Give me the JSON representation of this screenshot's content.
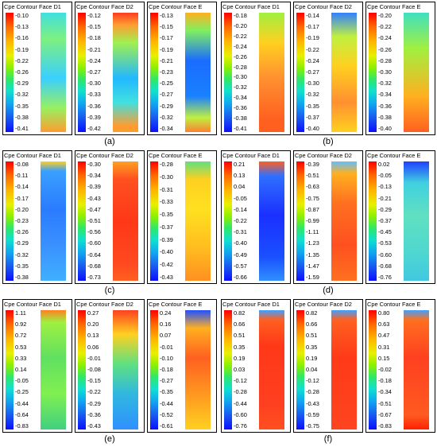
{
  "groups": [
    {
      "label": "(a)",
      "panels": [
        {
          "title": "Cpe Contour Face D1",
          "ticks": [
            "-0.10",
            "-0.13",
            "-0.16",
            "-0.19",
            "-0.22",
            "-0.26",
            "-0.29",
            "-0.32",
            "-0.35",
            "-0.38",
            "-0.41"
          ],
          "style": "a1"
        },
        {
          "title": "Cpe Contour Face D2",
          "ticks": [
            "-0.12",
            "-0.15",
            "-0.18",
            "-0.21",
            "-0.24",
            "-0.27",
            "-0.30",
            "-0.33",
            "-0.36",
            "-0.39",
            "-0.42"
          ],
          "style": "a2"
        },
        {
          "title": "Cpe Contour Face E",
          "ticks": [
            "-0.13",
            "-0.15",
            "-0.17",
            "-0.19",
            "-0.21",
            "-0.23",
            "-0.25",
            "-0.27",
            "-0.29",
            "-0.32",
            "-0.34"
          ],
          "style": "a3"
        }
      ]
    },
    {
      "label": "(b)",
      "panels": [
        {
          "title": "Cpe Contour Face D1",
          "ticks": [
            "-0.18",
            "-0.20",
            "-0.22",
            "-0.24",
            "-0.26",
            "-0.28",
            "-0.30",
            "-0.32",
            "-0.34",
            "-0.36",
            "-0.38",
            "-0.41"
          ],
          "style": "b1"
        },
        {
          "title": "Cpe Contour Face D2",
          "ticks": [
            "-0.14",
            "-0.17",
            "-0.19",
            "-0.22",
            "-0.24",
            "-0.27",
            "-0.30",
            "-0.32",
            "-0.35",
            "-0.37",
            "-0.40"
          ],
          "style": "b2"
        },
        {
          "title": "Cpe Contour Face E",
          "ticks": [
            "-0.20",
            "-0.22",
            "-0.24",
            "-0.26",
            "-0.28",
            "-0.30",
            "-0.32",
            "-0.34",
            "-0.36",
            "-0.38",
            "-0.40"
          ],
          "style": "b3"
        }
      ]
    },
    {
      "label": "(c)",
      "panels": [
        {
          "title": "Cpe Contour Face D1",
          "ticks": [
            "-0.08",
            "-0.11",
            "-0.14",
            "-0.17",
            "-0.20",
            "-0.23",
            "-0.26",
            "-0.29",
            "-0.32",
            "-0.35",
            "-0.38"
          ],
          "style": "c1"
        },
        {
          "title": "Cpe Contour Face D2",
          "ticks": [
            "-0.30",
            "-0.34",
            "-0.39",
            "-0.43",
            "-0.47",
            "-0.51",
            "-0.56",
            "-0.60",
            "-0.64",
            "-0.68",
            "-0.73"
          ],
          "style": "c2"
        },
        {
          "title": "Cpe Contour Face E",
          "ticks": [
            "-0.28",
            "-0.30",
            "-0.31",
            "-0.33",
            "-0.35",
            "-0.37",
            "-0.39",
            "-0.40",
            "-0.42",
            "-0.43"
          ],
          "style": "c3"
        }
      ]
    },
    {
      "label": "(d)",
      "panels": [
        {
          "title": "Cpe Contour Face D1",
          "ticks": [
            "0.21",
            "0.13",
            "0.04",
            "-0.05",
            "-0.14",
            "-0.22",
            "-0.31",
            "-0.40",
            "-0.49",
            "-0.57",
            "-0.66"
          ],
          "style": "d1"
        },
        {
          "title": "Cpe Contour Face D2",
          "ticks": [
            "-0.39",
            "-0.51",
            "-0.63",
            "-0.75",
            "-0.87",
            "-0.99",
            "-1.11",
            "-1.23",
            "-1.35",
            "-1.47",
            "-1.59"
          ],
          "style": "d2"
        },
        {
          "title": "Cpe Contour Face E",
          "ticks": [
            "0.02",
            "-0.05",
            "-0.13",
            "-0.21",
            "-0.29",
            "-0.37",
            "-0.45",
            "-0.53",
            "-0.60",
            "-0.68",
            "-0.76"
          ],
          "style": "d3"
        }
      ]
    },
    {
      "label": "(e)",
      "panels": [
        {
          "title": "Cpe Contour Face D1",
          "ticks": [
            "1.11",
            "0.92",
            "0.72",
            "0.53",
            "0.33",
            "0.14",
            "-0.05",
            "-0.25",
            "-0.44",
            "-0.64",
            "-0.83"
          ],
          "style": "e1"
        },
        {
          "title": "Cpe Contour Face D2",
          "ticks": [
            "0.27",
            "0.20",
            "0.13",
            "0.06",
            "-0.01",
            "-0.08",
            "-0.15",
            "-0.22",
            "-0.29",
            "-0.36",
            "-0.43"
          ],
          "style": "e2"
        },
        {
          "title": "Cpe Contour Face E",
          "ticks": [
            "0.24",
            "0.16",
            "0.07",
            "-0.01",
            "-0.10",
            "-0.18",
            "-0.27",
            "-0.35",
            "-0.44",
            "-0.52",
            "-0.61"
          ],
          "style": "e3"
        }
      ]
    },
    {
      "label": "(f)",
      "panels": [
        {
          "title": "Cpe Contour Face D1",
          "ticks": [
            "0.82",
            "0.66",
            "0.51",
            "0.35",
            "0.19",
            "0.03",
            "-0.12",
            "-0.28",
            "-0.44",
            "-0.60",
            "-0.76"
          ],
          "style": "f1"
        },
        {
          "title": "Cpe Contour Face D2",
          "ticks": [
            "0.82",
            "0.66",
            "0.51",
            "0.35",
            "0.19",
            "0.04",
            "-0.12",
            "-0.28",
            "-0.43",
            "-0.59",
            "-0.75"
          ],
          "style": "f2"
        },
        {
          "title": "Cpe Contour Face E",
          "ticks": [
            "0.80",
            "0.63",
            "0.47",
            "0.31",
            "0.15",
            "-0.02",
            "-0.18",
            "-0.34",
            "-0.51",
            "-0.67",
            "-0.83"
          ],
          "style": "f3"
        }
      ]
    }
  ]
}
